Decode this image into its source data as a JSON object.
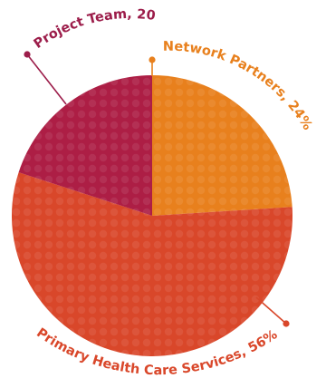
{
  "chart_data": {
    "type": "pie",
    "title": "",
    "slices": [
      {
        "label": "Network Partners, 24%",
        "value": 24,
        "color": "#e8801d"
      },
      {
        "label": "Primary Health Care Services, 56%",
        "value": 56,
        "color": "#d9472a"
      },
      {
        "label": "Project Team, 20%",
        "value": 20,
        "color": "#ad1e45"
      }
    ],
    "label_colors": [
      "#e8801d",
      "#d9472a",
      "#9c1d4a"
    ],
    "legend": "none",
    "grid": false
  }
}
